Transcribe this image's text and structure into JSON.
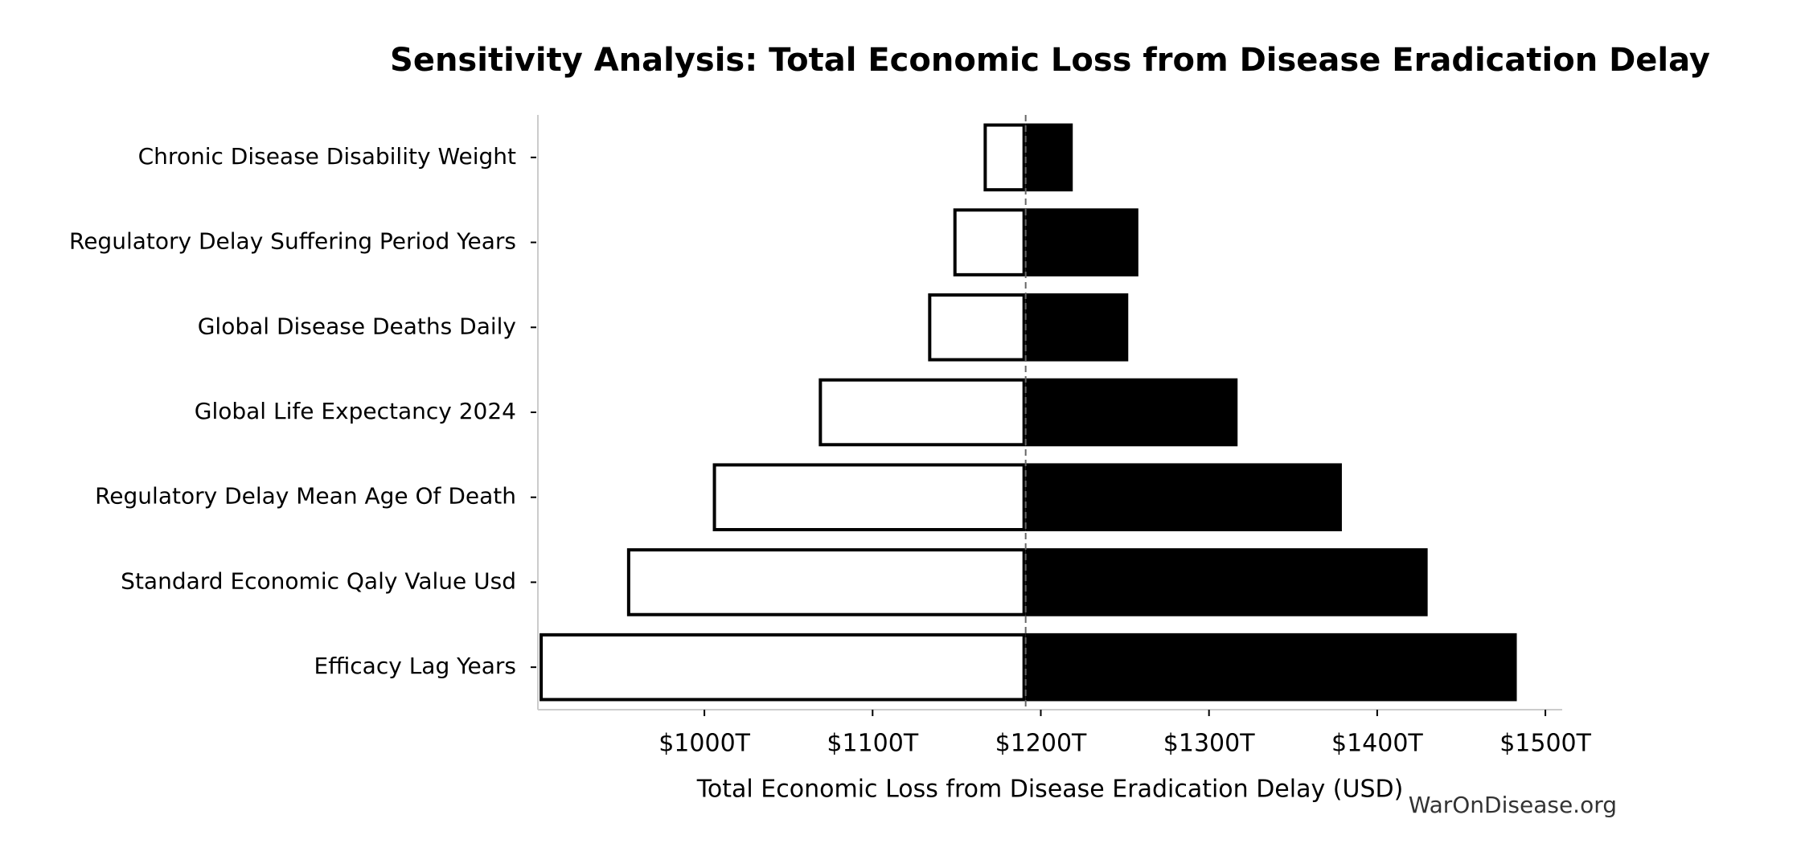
{
  "chart_data": {
    "type": "tornado",
    "title": "Sensitivity Analysis: Total Economic Loss from Disease Eradication Delay",
    "x_label": "Total Economic Loss from Disease Eradication Delay (USD)",
    "watermark": "WarOnDisease.org",
    "categories": [
      "Chronic Disease Disability Weight",
      "Regulatory Delay Suffering Period Years",
      "Global Disease Deaths Daily",
      "Global Life Expectancy 2024",
      "Regulatory Delay Mean Age Of Death",
      "Standard Economic Qaly Value Usd",
      "Efficacy Lag Years"
    ],
    "baseline": 1191,
    "low": {
      "color": "#ffffff",
      "edge_color": "#000000",
      "values": [
        1166,
        1148,
        1133,
        1068,
        1005,
        954,
        902
      ]
    },
    "high": {
      "color": "#000000",
      "values": [
        1219,
        1258,
        1252,
        1317,
        1379,
        1430,
        1483
      ]
    },
    "xlim": [
      901,
      1510
    ],
    "xticks": [
      {
        "value": 1000,
        "label": "$1000T"
      },
      {
        "value": 1100,
        "label": "$1100T"
      },
      {
        "value": 1200,
        "label": "$1200T"
      },
      {
        "value": 1300,
        "label": "$1300T"
      },
      {
        "value": 1400,
        "label": "$1400T"
      },
      {
        "value": 1500,
        "label": "$1500T"
      }
    ]
  }
}
